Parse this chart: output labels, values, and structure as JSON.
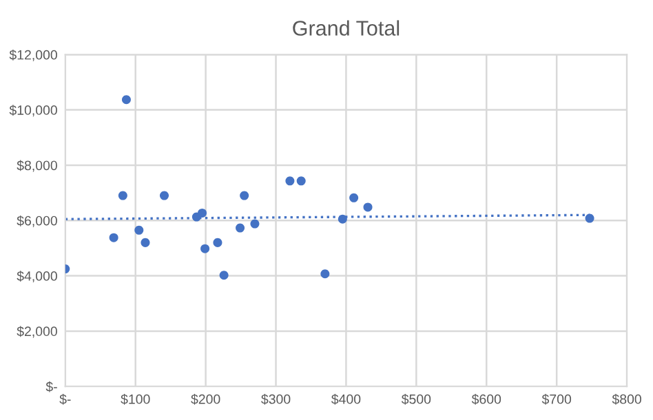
{
  "chart_data": {
    "type": "scatter",
    "title": "Grand Total",
    "grid": true,
    "xlim": [
      0,
      800
    ],
    "ylim": [
      0,
      12000
    ],
    "xticks": [
      {
        "value": 0,
        "label": "$-"
      },
      {
        "value": 100,
        "label": "$100"
      },
      {
        "value": 200,
        "label": "$200"
      },
      {
        "value": 300,
        "label": "$300"
      },
      {
        "value": 400,
        "label": "$400"
      },
      {
        "value": 500,
        "label": "$500"
      },
      {
        "value": 600,
        "label": "$600"
      },
      {
        "value": 700,
        "label": "$700"
      },
      {
        "value": 800,
        "label": "$800"
      }
    ],
    "yticks": [
      {
        "value": 0,
        "label": "$-"
      },
      {
        "value": 2000,
        "label": "$2,000"
      },
      {
        "value": 4000,
        "label": "$4,000"
      },
      {
        "value": 6000,
        "label": "$6,000"
      },
      {
        "value": 8000,
        "label": "$8,000"
      },
      {
        "value": 10000,
        "label": "$10,000"
      },
      {
        "value": 12000,
        "label": "$12,000"
      }
    ],
    "series": [
      {
        "marker": "circle",
        "color": "#4472c4",
        "x": [
          0,
          69,
          82,
          87,
          105,
          114,
          141,
          187,
          195,
          199,
          217,
          226,
          249,
          255,
          270,
          320,
          336,
          370,
          395,
          411,
          431,
          747
        ],
        "values": [
          4250,
          5380,
          6900,
          10370,
          5650,
          5200,
          6900,
          6130,
          6270,
          4980,
          5200,
          4020,
          5730,
          6900,
          5880,
          7430,
          7430,
          4070,
          6050,
          6820,
          6480,
          6080
        ]
      },
      {
        "type": "line",
        "marker": "none",
        "color": "#4472c4",
        "line_style": "dotted",
        "x": [
          0,
          747
        ],
        "values": [
          6050,
          6200
        ]
      }
    ]
  }
}
